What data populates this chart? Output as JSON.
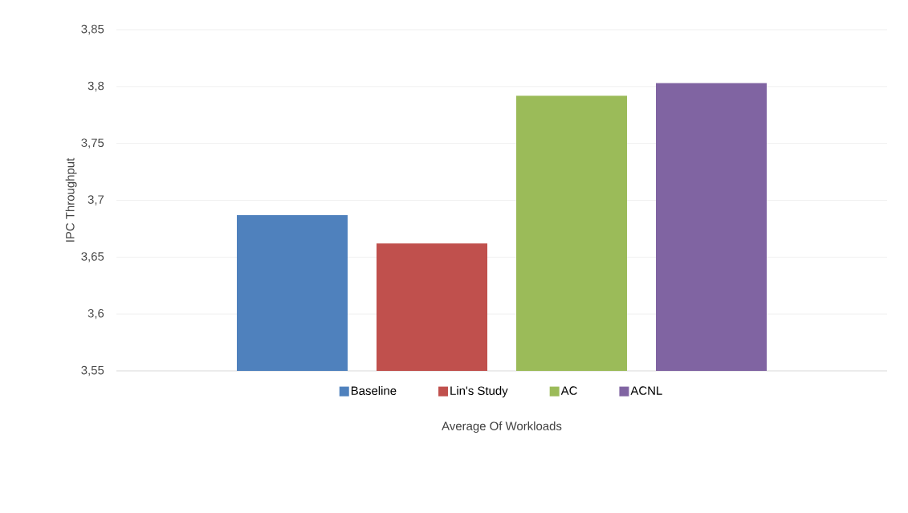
{
  "chart_data": {
    "type": "bar",
    "xlabel": "Average Of Workloads",
    "ylabel": "IPC Throughput",
    "categories": [
      null
    ],
    "series": [
      {
        "name": "Baseline",
        "color": "#4f81bd",
        "values": [
          3.687
        ]
      },
      {
        "name": "Lin's Study",
        "color": "#c0504d",
        "values": [
          3.662
        ]
      },
      {
        "name": "AC",
        "color": "#9bbb59",
        "values": [
          3.792
        ]
      },
      {
        "name": "ACNL",
        "color": "#8064a2",
        "values": [
          3.803
        ]
      }
    ],
    "ylim": [
      3.55,
      3.85
    ],
    "yticks": [
      {
        "value": 3.55,
        "label": "3,55"
      },
      {
        "value": 3.6,
        "label": "3,6"
      },
      {
        "value": 3.65,
        "label": "3,65"
      },
      {
        "value": 3.7,
        "label": "3,7"
      },
      {
        "value": 3.75,
        "label": "3,75"
      },
      {
        "value": 3.8,
        "label": "3,8"
      },
      {
        "value": 3.85,
        "label": "3,85"
      }
    ],
    "grid": "y",
    "legend": "bottom"
  }
}
